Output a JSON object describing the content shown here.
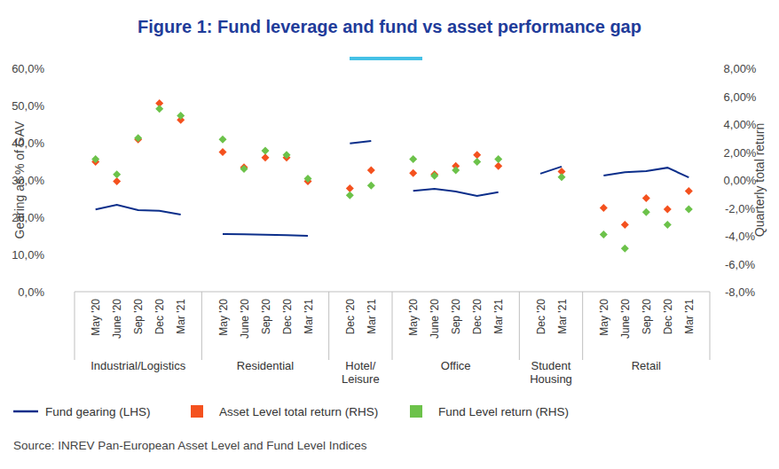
{
  "chart_data": {
    "type": "line",
    "title": "Figure 1: Fund leverage and fund vs asset performance gap",
    "y_label": "Gearing as % of GAV",
    "y2_label": "Quarterly total return",
    "source": "Source: INREV Pan-European Asset Level and Fund Level Indices",
    "categories": [
      "May '20",
      "June '20",
      "Sep '20",
      "Dec '20",
      "Mar '21",
      "May '20",
      "June '20",
      "Sep '20",
      "Dec '20",
      "Mar '21",
      "Dec '20",
      "Mar '21",
      "May '20",
      "June '20",
      "Sep '20",
      "Dec '20",
      "Mar '21",
      "Dec '20",
      "Mar '21",
      "May '20",
      "June '20",
      "Sep '20",
      "Dec '20",
      "Mar '21"
    ],
    "groups": [
      {
        "label": "Industrial/Logistics",
        "start": 0,
        "end": 4
      },
      {
        "label": "Residential",
        "start": 5,
        "end": 9
      },
      {
        "label": "Hotel/\nLeisure",
        "start": 10,
        "end": 11
      },
      {
        "label": "Office",
        "start": 12,
        "end": 16
      },
      {
        "label": "Student\nHousing",
        "start": 17,
        "end": 18
      },
      {
        "label": "Retail",
        "start": 19,
        "end": 23
      }
    ],
    "series": [
      {
        "name": "Fund gearing (LHS)",
        "type": "line",
        "color": "#0b2e8a",
        "line_style": "solid",
        "values": [
          22.1,
          23.3,
          21.9,
          21.7,
          20.7,
          15.5,
          15.4,
          15.3,
          15.2,
          15.0,
          39.8,
          40.5,
          27.1,
          27.6,
          26.9,
          25.7,
          26.7,
          31.7,
          33.6,
          31.2,
          32.1,
          32.4,
          33.3,
          30.7
        ]
      },
      {
        "name": "Asset Level total return (RHS)",
        "type": "scatter",
        "marker": "diamond",
        "color": "#f4511e",
        "axis": "y2",
        "values": [
          1.3,
          -0.1,
          2.9,
          5.5,
          4.3,
          2.0,
          0.9,
          1.6,
          1.6,
          -0.1,
          -0.6,
          0.7,
          0.5,
          0.4,
          1.0,
          1.8,
          1.0,
          null,
          0.6,
          -2.0,
          -3.2,
          -1.3,
          -2.1,
          -0.8
        ]
      },
      {
        "name": "Fund Level return (RHS)",
        "type": "scatter",
        "marker": "diamond",
        "color": "#6cc24a",
        "axis": "y2",
        "values": [
          1.5,
          0.4,
          3.0,
          5.1,
          4.6,
          2.9,
          0.8,
          2.1,
          1.8,
          0.1,
          -1.1,
          -0.4,
          1.5,
          0.3,
          0.7,
          1.3,
          1.5,
          null,
          0.2,
          -3.9,
          -4.9,
          -2.3,
          -3.2,
          -2.1
        ]
      }
    ],
    "ylim": [
      0,
      60
    ],
    "yticks": [
      {
        "value": 0,
        "label": "0,0%"
      },
      {
        "value": 10,
        "label": "10,0%"
      },
      {
        "value": 20,
        "label": "20,0%"
      },
      {
        "value": 30,
        "label": "30,0%"
      },
      {
        "value": 40,
        "label": "40,0%"
      },
      {
        "value": 50,
        "label": "50,0%"
      },
      {
        "value": 60,
        "label": "60,0%"
      }
    ],
    "y2lim": [
      -8,
      8
    ],
    "y2ticks": [
      {
        "value": -8,
        "label": "-8,0%"
      },
      {
        "value": -6,
        "label": "-6,0%"
      },
      {
        "value": -4,
        "label": "-4,0%"
      },
      {
        "value": -2,
        "label": "-2,0%"
      },
      {
        "value": 0,
        "label": "0,00%"
      },
      {
        "value": 2,
        "label": "2,00%"
      },
      {
        "value": 4,
        "label": "4,00%"
      },
      {
        "value": 6,
        "label": "6,00%"
      },
      {
        "value": 8,
        "label": "8,00%"
      }
    ],
    "grid": false,
    "legend": "bottom"
  }
}
